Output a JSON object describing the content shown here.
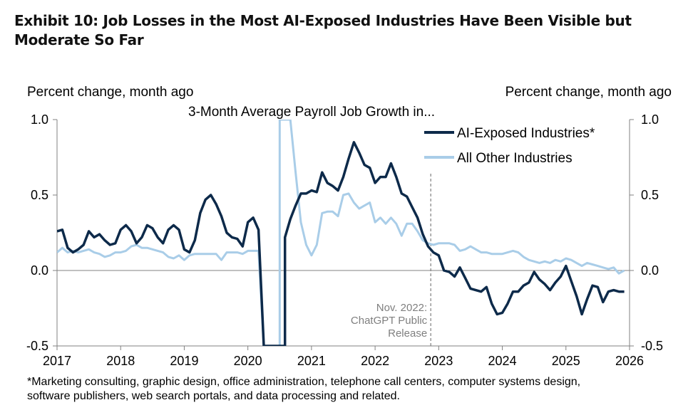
{
  "title": "Exhibit 10: Job Losses in the Most AI-Exposed Industries Have Been Visible but Moderate So Far",
  "left_axis_label": "Percent change, month ago",
  "right_axis_label": "Percent change, month ago",
  "subtitle": "3-Month Average Payroll Job Growth in...",
  "footnote_lines": [
    "*Marketing consulting, graphic design, office administration, telephone call centers, computer systems design,",
    "software publishers, web search portals, and data processing and related."
  ],
  "chart_data": {
    "type": "line",
    "title": "3-Month Average Payroll Job Growth in...",
    "ylabel": "Percent change, month ago",
    "y2label": "Percent change, month ago",
    "xlim": [
      2017,
      2026
    ],
    "ylim": [
      -0.5,
      1.0
    ],
    "yticks": [
      "1.0",
      "0.5",
      "0.0",
      "-0.5"
    ],
    "xticks": [
      "2017",
      "2018",
      "2019",
      "2020",
      "2021",
      "2022",
      "2023",
      "2024",
      "2025",
      "2026"
    ],
    "grid": false,
    "legend_position": "top-right",
    "annotation": {
      "x": 2022.875,
      "lines": [
        "Nov. 2022:",
        "ChatGPT Public",
        "Release"
      ]
    },
    "series": [
      {
        "name": "AI-Exposed Industries*",
        "color": "#0d2a4a",
        "points": [
          [
            2017.0,
            0.26
          ],
          [
            2017.083,
            0.27
          ],
          [
            2017.167,
            0.15
          ],
          [
            2017.25,
            0.12
          ],
          [
            2017.333,
            0.14
          ],
          [
            2017.417,
            0.17
          ],
          [
            2017.5,
            0.26
          ],
          [
            2017.583,
            0.22
          ],
          [
            2017.667,
            0.24
          ],
          [
            2017.75,
            0.2
          ],
          [
            2017.833,
            0.17
          ],
          [
            2017.917,
            0.18
          ],
          [
            2018.0,
            0.27
          ],
          [
            2018.083,
            0.3
          ],
          [
            2018.167,
            0.26
          ],
          [
            2018.25,
            0.18
          ],
          [
            2018.333,
            0.22
          ],
          [
            2018.417,
            0.3
          ],
          [
            2018.5,
            0.28
          ],
          [
            2018.583,
            0.22
          ],
          [
            2018.667,
            0.18
          ],
          [
            2018.75,
            0.27
          ],
          [
            2018.833,
            0.3
          ],
          [
            2018.917,
            0.27
          ],
          [
            2019.0,
            0.14
          ],
          [
            2019.083,
            0.12
          ],
          [
            2019.167,
            0.2
          ],
          [
            2019.25,
            0.38
          ],
          [
            2019.333,
            0.47
          ],
          [
            2019.417,
            0.5
          ],
          [
            2019.5,
            0.44
          ],
          [
            2019.583,
            0.36
          ],
          [
            2019.667,
            0.25
          ],
          [
            2019.75,
            0.22
          ],
          [
            2019.833,
            0.21
          ],
          [
            2019.917,
            0.16
          ],
          [
            2020.0,
            0.32
          ],
          [
            2020.083,
            0.35
          ],
          [
            2020.167,
            0.27
          ],
          [
            2020.25,
            -0.5
          ],
          [
            2020.583,
            -0.5
          ],
          [
            2020.583,
            0.22
          ],
          [
            2020.667,
            0.34
          ],
          [
            2020.75,
            0.43
          ],
          [
            2020.833,
            0.51
          ],
          [
            2020.917,
            0.51
          ],
          [
            2021.0,
            0.53
          ],
          [
            2021.083,
            0.52
          ],
          [
            2021.167,
            0.65
          ],
          [
            2021.25,
            0.58
          ],
          [
            2021.333,
            0.56
          ],
          [
            2021.417,
            0.53
          ],
          [
            2021.5,
            0.62
          ],
          [
            2021.583,
            0.74
          ],
          [
            2021.667,
            0.85
          ],
          [
            2021.75,
            0.78
          ],
          [
            2021.833,
            0.7
          ],
          [
            2021.917,
            0.68
          ],
          [
            2022.0,
            0.58
          ],
          [
            2022.083,
            0.62
          ],
          [
            2022.167,
            0.62
          ],
          [
            2022.25,
            0.71
          ],
          [
            2022.333,
            0.62
          ],
          [
            2022.417,
            0.51
          ],
          [
            2022.5,
            0.49
          ],
          [
            2022.583,
            0.42
          ],
          [
            2022.667,
            0.35
          ],
          [
            2022.75,
            0.24
          ],
          [
            2022.833,
            0.16
          ],
          [
            2022.917,
            0.12
          ],
          [
            2023.0,
            0.1
          ],
          [
            2023.083,
            0.0
          ],
          [
            2023.167,
            -0.01
          ],
          [
            2023.25,
            -0.04
          ],
          [
            2023.333,
            0.02
          ],
          [
            2023.417,
            -0.05
          ],
          [
            2023.5,
            -0.12
          ],
          [
            2023.583,
            -0.13
          ],
          [
            2023.667,
            -0.14
          ],
          [
            2023.75,
            -0.11
          ],
          [
            2023.833,
            -0.22
          ],
          [
            2023.917,
            -0.29
          ],
          [
            2024.0,
            -0.28
          ],
          [
            2024.083,
            -0.22
          ],
          [
            2024.167,
            -0.14
          ],
          [
            2024.25,
            -0.14
          ],
          [
            2024.333,
            -0.1
          ],
          [
            2024.417,
            -0.08
          ],
          [
            2024.5,
            -0.01
          ],
          [
            2024.583,
            -0.06
          ],
          [
            2024.667,
            -0.09
          ],
          [
            2024.75,
            -0.13
          ],
          [
            2024.833,
            -0.08
          ],
          [
            2024.917,
            -0.04
          ],
          [
            2025.0,
            0.03
          ],
          [
            2025.083,
            -0.07
          ],
          [
            2025.167,
            -0.17
          ],
          [
            2025.25,
            -0.29
          ],
          [
            2025.333,
            -0.19
          ],
          [
            2025.417,
            -0.1
          ],
          [
            2025.5,
            -0.11
          ],
          [
            2025.583,
            -0.21
          ],
          [
            2025.667,
            -0.14
          ],
          [
            2025.75,
            -0.13
          ],
          [
            2025.833,
            -0.14
          ],
          [
            2025.917,
            -0.14
          ]
        ]
      },
      {
        "name": "All Other Industries",
        "color": "#a9cde8",
        "points": [
          [
            2017.0,
            0.12
          ],
          [
            2017.083,
            0.15
          ],
          [
            2017.167,
            0.12
          ],
          [
            2017.25,
            0.13
          ],
          [
            2017.333,
            0.12
          ],
          [
            2017.417,
            0.13
          ],
          [
            2017.5,
            0.14
          ],
          [
            2017.583,
            0.12
          ],
          [
            2017.667,
            0.11
          ],
          [
            2017.75,
            0.09
          ],
          [
            2017.833,
            0.1
          ],
          [
            2017.917,
            0.12
          ],
          [
            2018.0,
            0.12
          ],
          [
            2018.083,
            0.13
          ],
          [
            2018.167,
            0.16
          ],
          [
            2018.25,
            0.17
          ],
          [
            2018.333,
            0.15
          ],
          [
            2018.417,
            0.15
          ],
          [
            2018.5,
            0.14
          ],
          [
            2018.583,
            0.13
          ],
          [
            2018.667,
            0.12
          ],
          [
            2018.75,
            0.09
          ],
          [
            2018.833,
            0.08
          ],
          [
            2018.917,
            0.1
          ],
          [
            2019.0,
            0.07
          ],
          [
            2019.083,
            0.1
          ],
          [
            2019.167,
            0.11
          ],
          [
            2019.25,
            0.11
          ],
          [
            2019.333,
            0.11
          ],
          [
            2019.417,
            0.11
          ],
          [
            2019.5,
            0.11
          ],
          [
            2019.583,
            0.07
          ],
          [
            2019.667,
            0.12
          ],
          [
            2019.75,
            0.12
          ],
          [
            2019.833,
            0.12
          ],
          [
            2019.917,
            0.11
          ],
          [
            2020.0,
            0.13
          ],
          [
            2020.083,
            0.13
          ],
          [
            2020.167,
            0.13
          ],
          [
            2020.25,
            -0.5
          ],
          [
            2020.5,
            -0.5
          ],
          [
            2020.5,
            1.0
          ],
          [
            2020.667,
            1.0
          ],
          [
            2020.75,
            0.65
          ],
          [
            2020.833,
            0.32
          ],
          [
            2020.917,
            0.17
          ],
          [
            2021.0,
            0.1
          ],
          [
            2021.083,
            0.17
          ],
          [
            2021.167,
            0.38
          ],
          [
            2021.25,
            0.39
          ],
          [
            2021.333,
            0.39
          ],
          [
            2021.417,
            0.36
          ],
          [
            2021.5,
            0.5
          ],
          [
            2021.583,
            0.51
          ],
          [
            2021.667,
            0.45
          ],
          [
            2021.75,
            0.41
          ],
          [
            2021.833,
            0.43
          ],
          [
            2021.917,
            0.45
          ],
          [
            2022.0,
            0.32
          ],
          [
            2022.083,
            0.35
          ],
          [
            2022.167,
            0.31
          ],
          [
            2022.25,
            0.35
          ],
          [
            2022.333,
            0.31
          ],
          [
            2022.417,
            0.23
          ],
          [
            2022.5,
            0.31
          ],
          [
            2022.583,
            0.31
          ],
          [
            2022.667,
            0.26
          ],
          [
            2022.75,
            0.2
          ],
          [
            2022.833,
            0.18
          ],
          [
            2022.917,
            0.17
          ],
          [
            2023.0,
            0.18
          ],
          [
            2023.083,
            0.18
          ],
          [
            2023.167,
            0.18
          ],
          [
            2023.25,
            0.17
          ],
          [
            2023.333,
            0.13
          ],
          [
            2023.417,
            0.14
          ],
          [
            2023.5,
            0.16
          ],
          [
            2023.583,
            0.14
          ],
          [
            2023.667,
            0.12
          ],
          [
            2023.75,
            0.12
          ],
          [
            2023.833,
            0.11
          ],
          [
            2023.917,
            0.11
          ],
          [
            2024.0,
            0.11
          ],
          [
            2024.083,
            0.12
          ],
          [
            2024.167,
            0.13
          ],
          [
            2024.25,
            0.12
          ],
          [
            2024.333,
            0.09
          ],
          [
            2024.417,
            0.07
          ],
          [
            2024.5,
            0.06
          ],
          [
            2024.583,
            0.05
          ],
          [
            2024.667,
            0.06
          ],
          [
            2024.75,
            0.05
          ],
          [
            2024.833,
            0.07
          ],
          [
            2024.917,
            0.06
          ],
          [
            2025.0,
            0.08
          ],
          [
            2025.083,
            0.07
          ],
          [
            2025.167,
            0.05
          ],
          [
            2025.25,
            0.03
          ],
          [
            2025.333,
            0.05
          ],
          [
            2025.417,
            0.04
          ],
          [
            2025.5,
            0.03
          ],
          [
            2025.583,
            0.02
          ],
          [
            2025.667,
            0.01
          ],
          [
            2025.75,
            0.02
          ],
          [
            2025.833,
            -0.02
          ],
          [
            2025.917,
            0.0
          ]
        ]
      }
    ]
  }
}
